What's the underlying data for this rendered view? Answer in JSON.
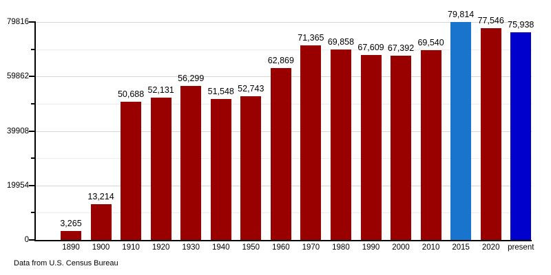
{
  "chart_data": {
    "type": "bar",
    "title": "",
    "xlabel": "",
    "ylabel": "",
    "categories": [
      "1890",
      "1900",
      "1910",
      "1920",
      "1930",
      "1940",
      "1950",
      "1960",
      "1970",
      "1980",
      "1990",
      "2000",
      "2010",
      "2015",
      "2020",
      "present"
    ],
    "values": [
      3265,
      13214,
      50688,
      52131,
      56299,
      51548,
      52743,
      62869,
      71365,
      69858,
      67609,
      67392,
      69540,
      79814,
      77546,
      75938
    ],
    "value_labels": [
      "3,265",
      "13,214",
      "50,688",
      "52,131",
      "56,299",
      "51,548",
      "52,743",
      "62,869",
      "71,365",
      "69,858",
      "67,609",
      "67,392",
      "69,540",
      "79,814",
      "77,546",
      "75,938"
    ],
    "bar_colors": [
      "#990000",
      "#990000",
      "#990000",
      "#990000",
      "#990000",
      "#990000",
      "#990000",
      "#990000",
      "#990000",
      "#990000",
      "#990000",
      "#990000",
      "#990000",
      "#1874CD",
      "#990000",
      "#0000CD"
    ],
    "y_ticks": [
      0,
      19954,
      39908,
      59862,
      79816
    ],
    "y_tick_labels": [
      "0",
      "19954",
      "39908",
      "59862",
      "79816"
    ],
    "y_minor_ticks": [
      9977,
      29931,
      49885,
      69839
    ],
    "ylim": [
      0,
      79816
    ],
    "grid": "on",
    "legend": "none",
    "source_note": "Data from U.S. Census Bureau",
    "colors": {
      "bar_default": "#990000",
      "bar_highlight_2015": "#1874CD",
      "bar_highlight_present": "#0000CD",
      "gridline_major": "#d4d4d4",
      "gridline_minor": "#ececec",
      "axis": "#000000"
    }
  }
}
